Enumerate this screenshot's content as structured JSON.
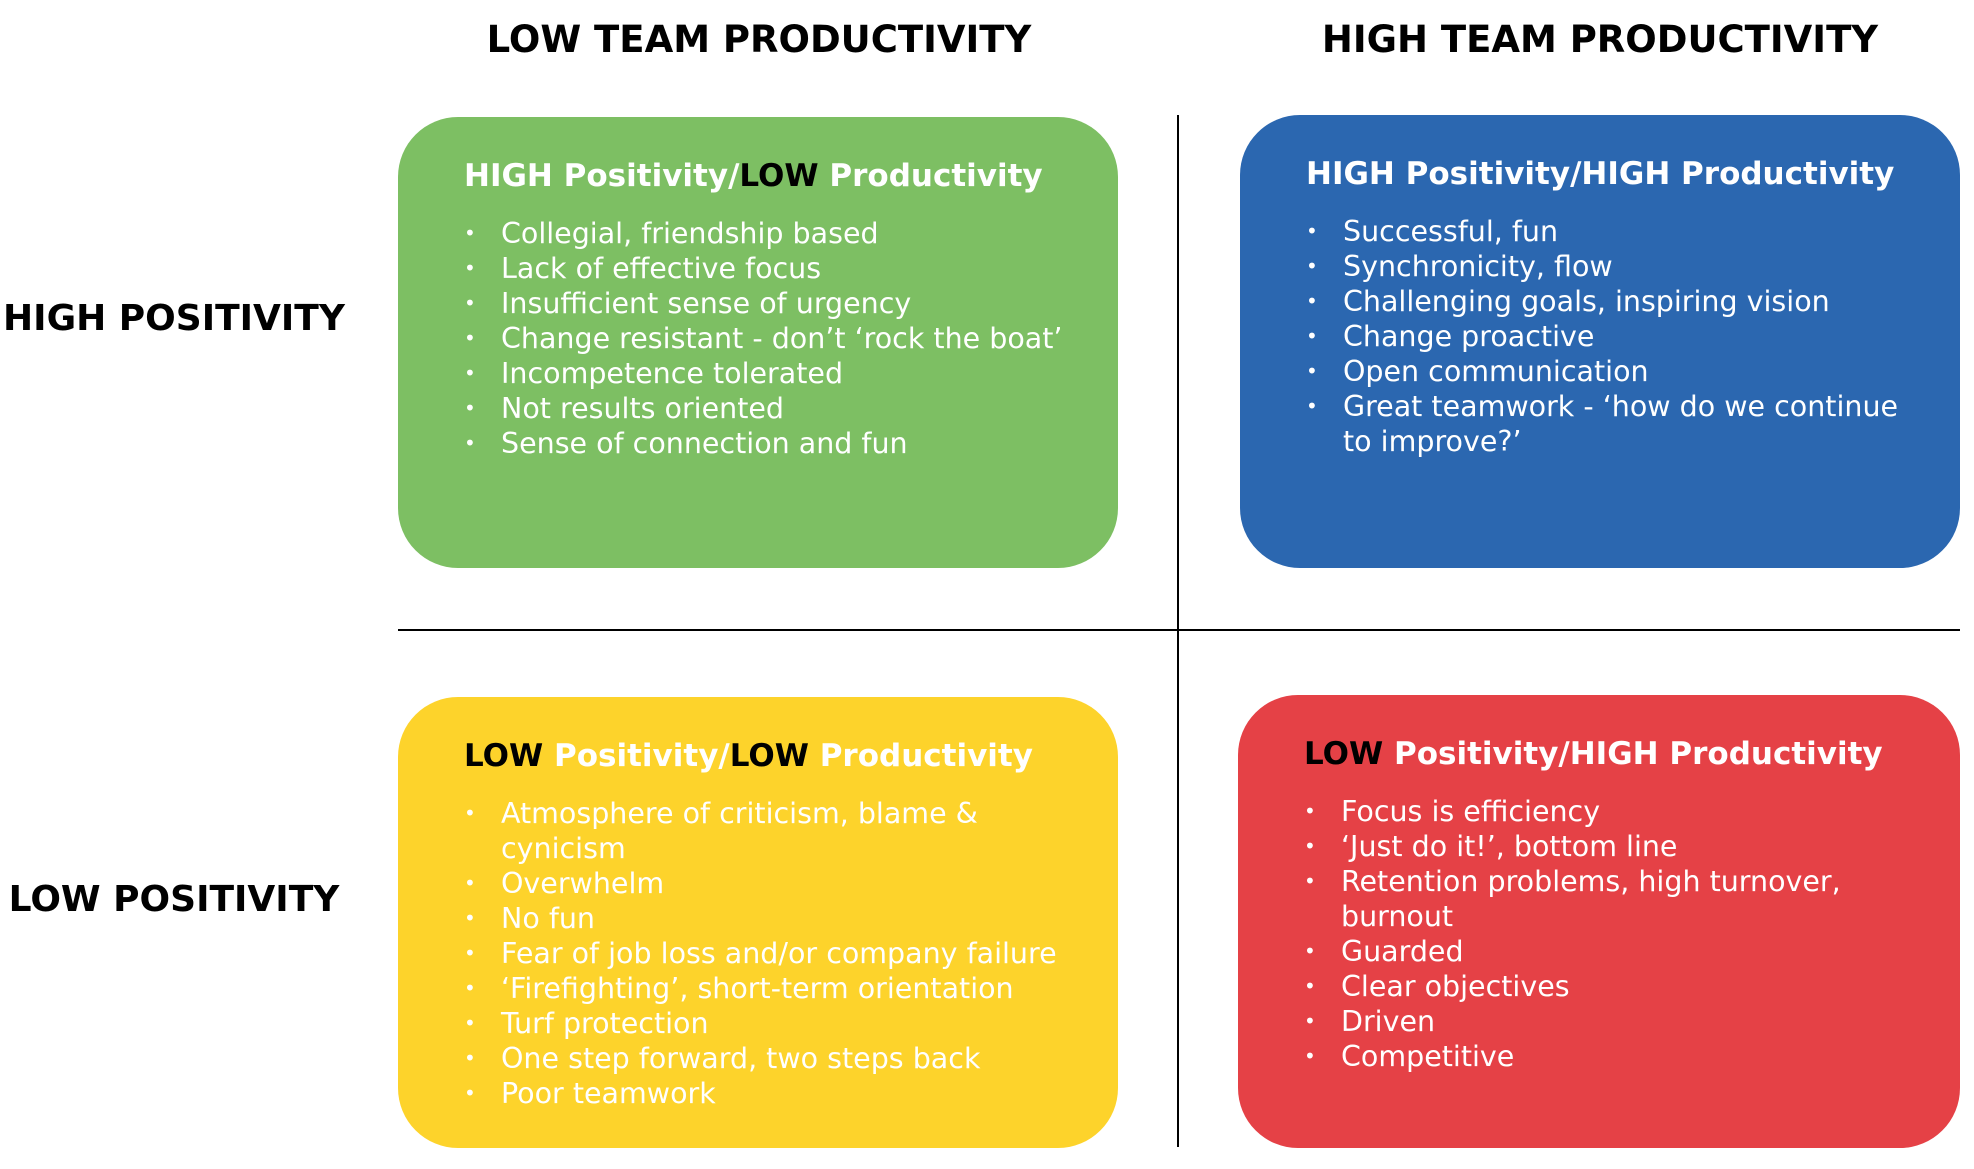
{
  "columns": {
    "low": "LOW TEAM PRODUCTIVITY",
    "high": "HIGH TEAM PRODUCTIVITY"
  },
  "rows": {
    "high": "HIGH POSITIVITY",
    "low": "LOW POSITIVITY"
  },
  "quadrants": {
    "high_low": {
      "color": "#7dbf63",
      "title": {
        "p1": "HIGH",
        "p2": " Positivity/",
        "p3": "LOW",
        "p4": " Productivity"
      },
      "items": [
        "Collegial, friendship based",
        "Lack of effective focus",
        "Insufficient sense of urgency",
        "Change resistant - don’t ‘rock the boat’",
        "Incompetence tolerated",
        "Not results oriented",
        "Sense of connection and fun"
      ]
    },
    "high_high": {
      "color": "#2b67b0",
      "title": {
        "p1": "HIGH",
        "p2": " Positivity/",
        "p3": "HIGH",
        "p4": " Productivity"
      },
      "items": [
        "Successful, fun",
        "Synchronicity, flow",
        "Challenging goals, inspiring vision",
        "Change proactive",
        "Open communication",
        "Great teamwork - ‘how do we continue to improve?’"
      ]
    },
    "low_low": {
      "color": "#fdd32b",
      "title": {
        "p1": "LOW",
        "p2": " Positivity/",
        "p3": "LOW",
        "p4": " Productivity"
      },
      "items": [
        "Atmosphere of criticism, blame & cynicism",
        "Overwhelm",
        "No fun",
        "Fear of job loss and/or company failure",
        "‘Firefighting’, short-term orientation",
        "Turf protection",
        "One step forward, two steps back",
        "Poor teamwork"
      ]
    },
    "low_high": {
      "color": "#e54146",
      "title": {
        "p1": "LOW",
        "p2": " Positivity/",
        "p3": "HIGH",
        "p4": " Productivity"
      },
      "items": [
        "Focus is efficiency",
        "‘Just do it!’, bottom line",
        "Retention problems, high turnover, burnout",
        "Guarded",
        "Clear objectives",
        "Driven",
        "Competitive"
      ]
    }
  }
}
